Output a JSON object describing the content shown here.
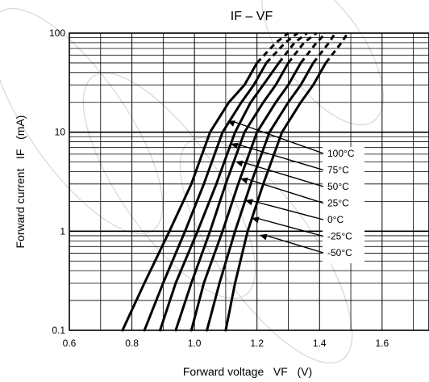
{
  "chart_data": {
    "type": "line",
    "title": "IF – VF",
    "xlabel": "Forward voltage   VF   (V)",
    "ylabel": "Forward current   IF   (mA)",
    "x_scale": "linear",
    "y_scale": "log",
    "xlim": [
      0.6,
      1.75
    ],
    "ylim": [
      0.1,
      100
    ],
    "grid": true,
    "x_ticks": [
      "0.6",
      "0.8",
      "1.0",
      "1.2",
      "1.4",
      "1.6"
    ],
    "y_ticks": [
      "0.1",
      "1",
      "10",
      "100"
    ],
    "legend_position": "right, leader lines with arrows to each curve",
    "series": [
      {
        "name": "100°C",
        "x": [
          0.77,
          0.84,
          0.92,
          0.99,
          1.05,
          1.11,
          1.16,
          1.2,
          1.26,
          1.3
        ],
        "y": [
          0.1,
          0.3,
          1,
          3,
          10,
          20,
          30,
          50,
          80,
          100
        ]
      },
      {
        "name": "75°C",
        "x": [
          0.84,
          0.9,
          0.97,
          1.03,
          1.09,
          1.15,
          1.19,
          1.23,
          1.29,
          1.33
        ],
        "y": [
          0.1,
          0.3,
          1,
          3,
          10,
          20,
          30,
          50,
          80,
          100
        ]
      },
      {
        "name": "50°C",
        "x": [
          0.89,
          0.94,
          1.01,
          1.07,
          1.13,
          1.18,
          1.22,
          1.27,
          1.32,
          1.36
        ],
        "y": [
          0.1,
          0.3,
          1,
          3,
          10,
          20,
          30,
          50,
          80,
          100
        ]
      },
      {
        "name": "25°C",
        "x": [
          0.94,
          0.99,
          1.05,
          1.1,
          1.16,
          1.22,
          1.26,
          1.3,
          1.35,
          1.39
        ],
        "y": [
          0.1,
          0.3,
          1,
          3,
          10,
          20,
          30,
          50,
          80,
          100
        ]
      },
      {
        "name": "0°C",
        "x": [
          0.99,
          1.03,
          1.09,
          1.14,
          1.2,
          1.26,
          1.3,
          1.34,
          1.39,
          1.42
        ],
        "y": [
          0.1,
          0.3,
          1,
          3,
          10,
          20,
          30,
          50,
          80,
          100
        ]
      },
      {
        "name": "-25°C",
        "x": [
          1.04,
          1.08,
          1.13,
          1.18,
          1.24,
          1.3,
          1.34,
          1.38,
          1.43,
          1.45
        ],
        "y": [
          0.1,
          0.3,
          1,
          3,
          10,
          20,
          30,
          50,
          80,
          100
        ]
      },
      {
        "name": "-50°C",
        "x": [
          1.1,
          1.13,
          1.17,
          1.22,
          1.28,
          1.34,
          1.38,
          1.42,
          1.47,
          1.49
        ],
        "y": [
          0.1,
          0.3,
          1,
          3,
          10,
          20,
          30,
          50,
          80,
          100
        ]
      }
    ]
  }
}
